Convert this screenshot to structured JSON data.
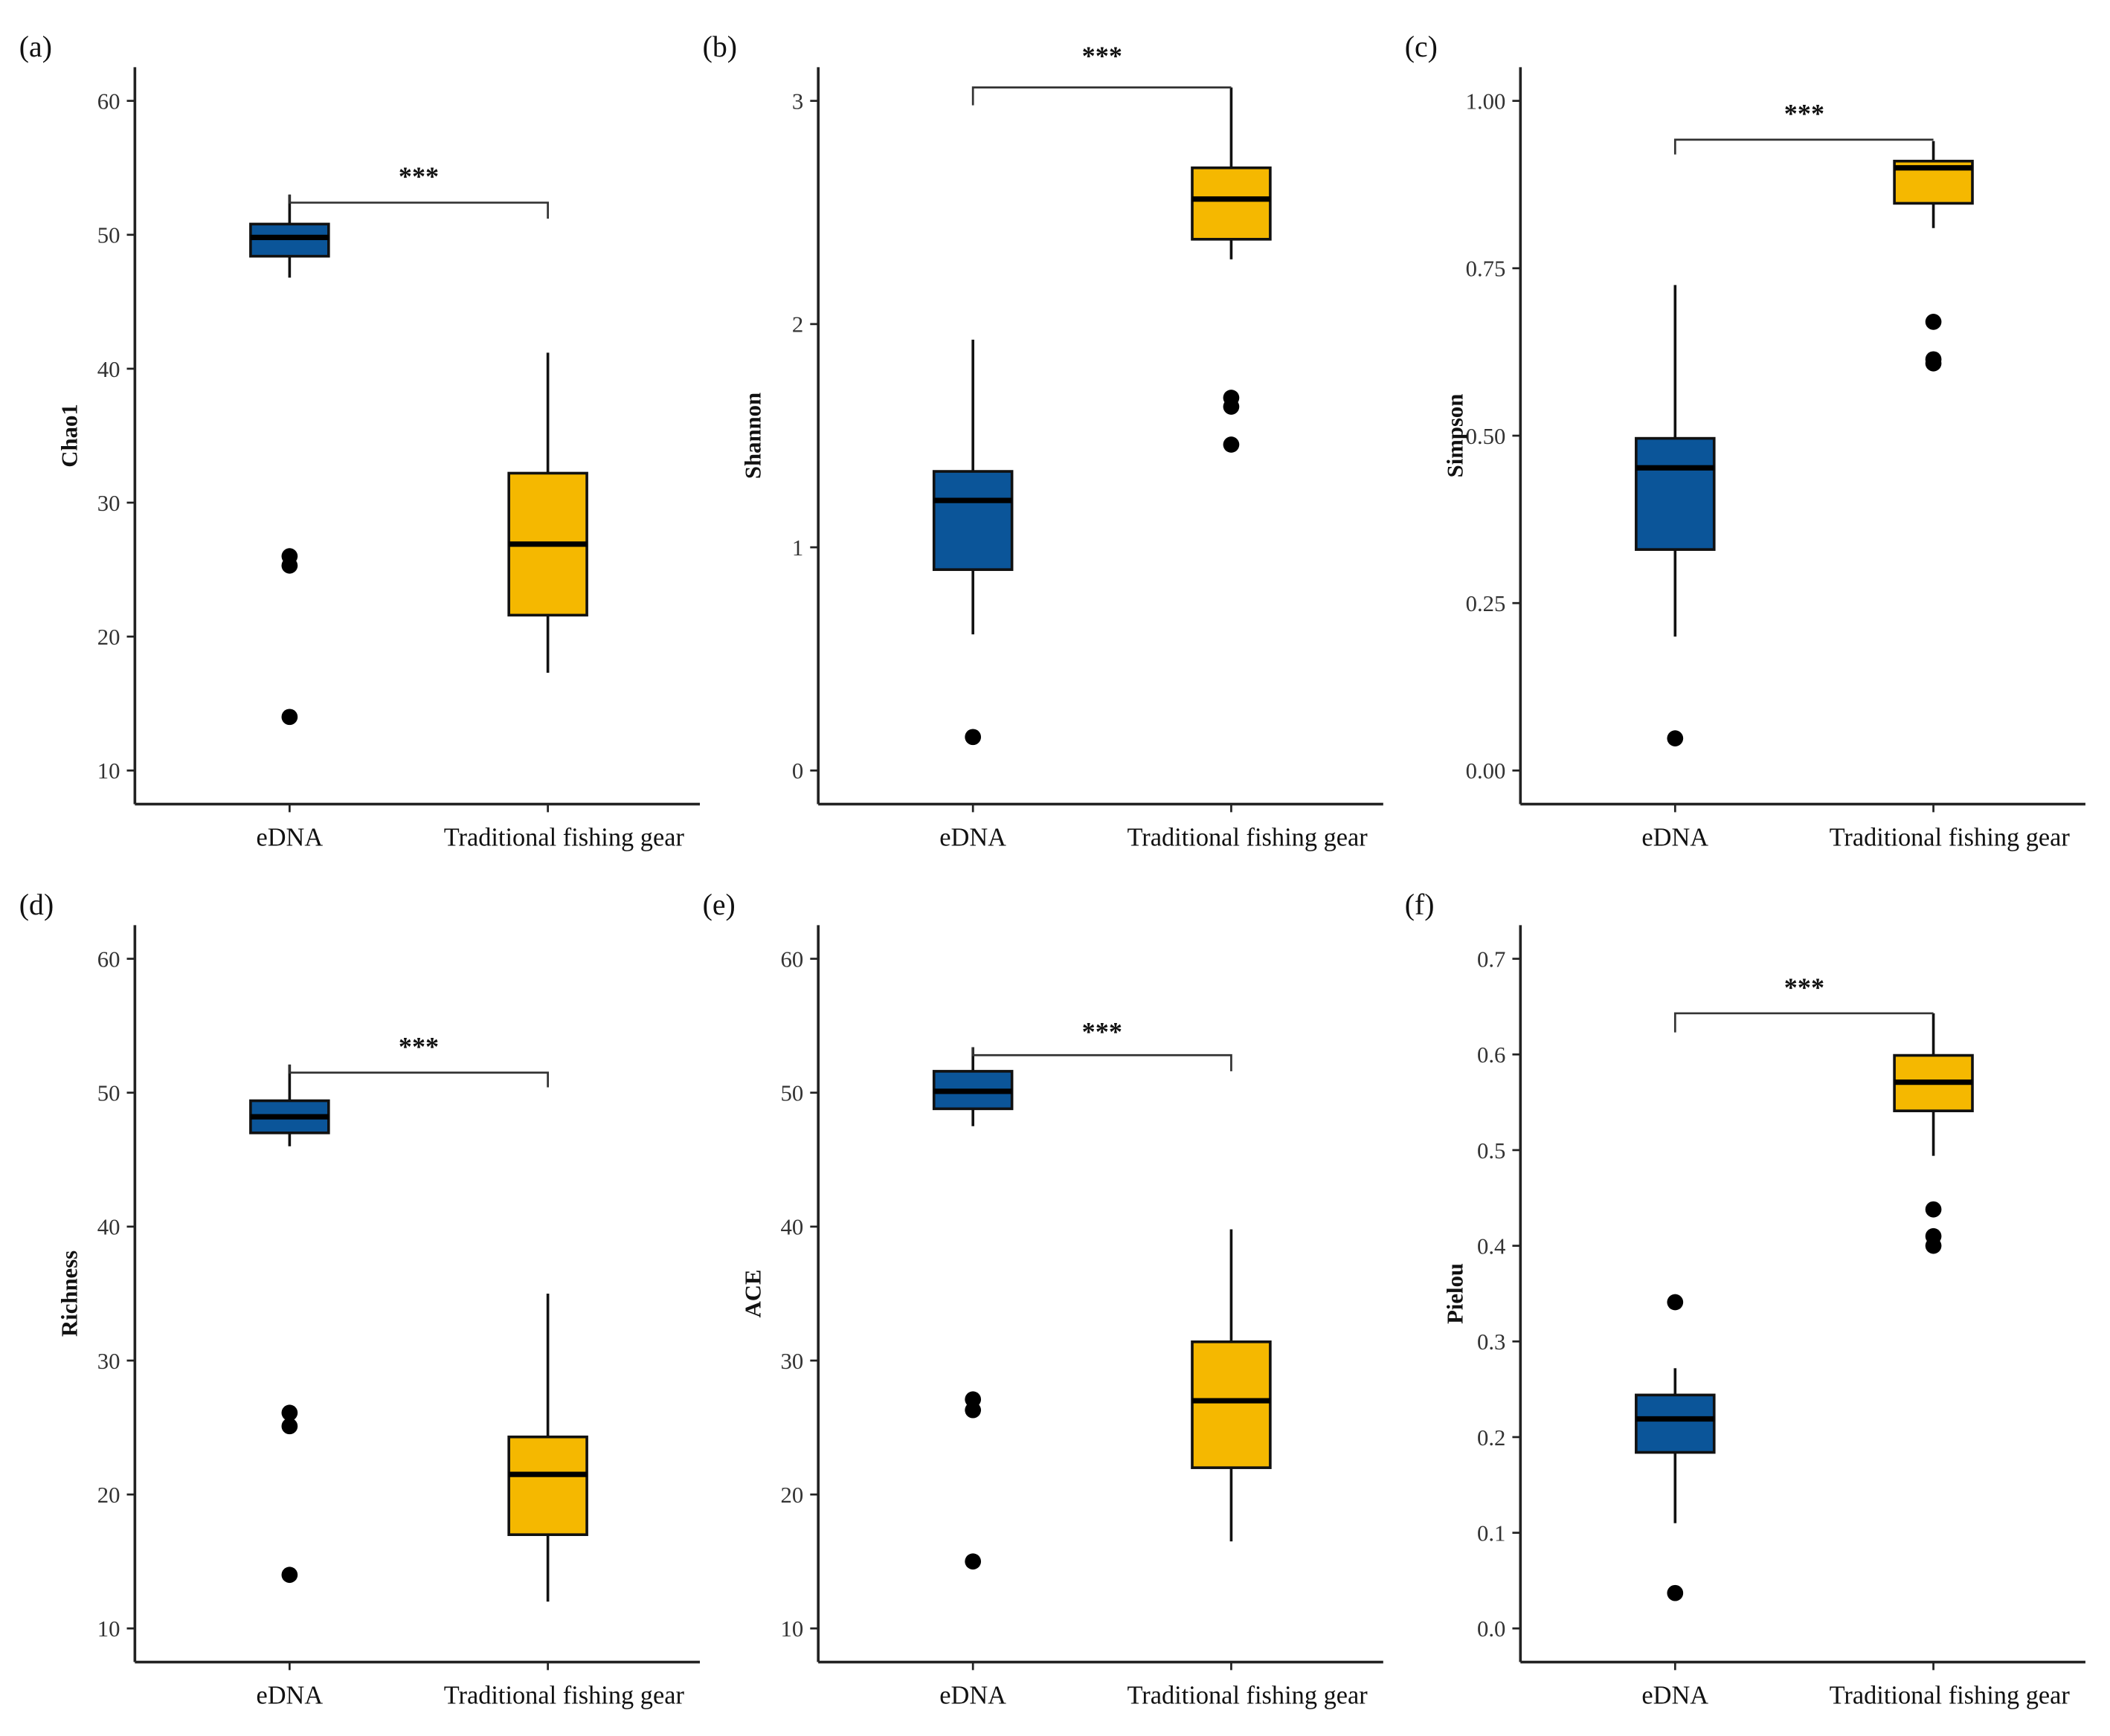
{
  "colors": {
    "eDNA": "#0b5599",
    "Traditional fishing gear": "#f5b800"
  },
  "chart_data": [
    {
      "type": "box",
      "panel": "(a)",
      "ylabel": "Chao1",
      "categories": [
        "eDNA",
        "Traditional fishing gear"
      ],
      "yticks": [
        10,
        20,
        30,
        40,
        50,
        60
      ],
      "ylim": [
        10,
        60
      ],
      "boxes": [
        {
          "min": 46.8,
          "q1": 48.4,
          "median": 49.8,
          "q3": 50.8,
          "max": 53.0,
          "outliers": [
            26.0,
            25.3,
            14.0
          ]
        },
        {
          "min": 17.3,
          "q1": 21.6,
          "median": 26.9,
          "q3": 32.2,
          "max": 41.2,
          "outliers": []
        }
      ],
      "significance": {
        "label": "***",
        "y": 52.4,
        "left_end": 53.0,
        "right_end": 51.2,
        "label_y": 54.5
      }
    },
    {
      "type": "box",
      "panel": "(b)",
      "ylabel": "Shannon",
      "categories": [
        "eDNA",
        "Traditional fishing gear"
      ],
      "yticks": [
        0,
        1,
        2,
        3
      ],
      "ylim": [
        0,
        3
      ],
      "boxes": [
        {
          "min": 0.61,
          "q1": 0.9,
          "median": 1.21,
          "q3": 1.34,
          "max": 1.93,
          "outliers": [
            0.15
          ]
        },
        {
          "min": 2.29,
          "q1": 2.38,
          "median": 2.56,
          "q3": 2.7,
          "max": 3.06,
          "outliers": [
            1.67,
            1.63,
            1.46
          ]
        }
      ],
      "significance": {
        "label": "***",
        "y": 3.06,
        "left_end": 2.98,
        "right_end": 3.06,
        "label_y": 3.21
      }
    },
    {
      "type": "box",
      "panel": "(c)",
      "ylabel": "Simpson",
      "categories": [
        "eDNA",
        "Traditional fishing gear"
      ],
      "yticks": [
        "0.00",
        "0.25",
        "0.50",
        "0.75",
        "1.00"
      ],
      "ylim": [
        0,
        1
      ],
      "boxes": [
        {
          "min": 0.2,
          "q1": 0.33,
          "median": 0.452,
          "q3": 0.496,
          "max": 0.725,
          "outliers": [
            0.048
          ]
        },
        {
          "min": 0.81,
          "q1": 0.847,
          "median": 0.9,
          "q3": 0.91,
          "max": 0.94,
          "outliers": [
            0.67,
            0.614,
            0.608
          ]
        }
      ],
      "significance": {
        "label": "***",
        "y": 0.942,
        "left_end": 0.92,
        "right_end": 0.942,
        "label_y": 0.984
      }
    },
    {
      "type": "box",
      "panel": "(d)",
      "ylabel": "Richness",
      "categories": [
        "eDNA",
        "Traditional fishing gear"
      ],
      "yticks": [
        10,
        20,
        30,
        40,
        50,
        60
      ],
      "ylim": [
        10,
        60
      ],
      "boxes": [
        {
          "min": 46.0,
          "q1": 47.0,
          "median": 48.2,
          "q3": 49.4,
          "max": 52.1,
          "outliers": [
            26.1,
            25.1,
            14.0
          ]
        },
        {
          "min": 12.0,
          "q1": 17.0,
          "median": 21.5,
          "q3": 24.3,
          "max": 35.0,
          "outliers": []
        }
      ],
      "significance": {
        "label": "***",
        "y": 51.5,
        "left_end": 52.1,
        "right_end": 50.4,
        "label_y": 53.6
      }
    },
    {
      "type": "box",
      "panel": "(e)",
      "ylabel": "ACE",
      "categories": [
        "eDNA",
        "Traditional fishing gear"
      ],
      "yticks": [
        10,
        20,
        30,
        40,
        50,
        60
      ],
      "ylim": [
        10,
        60
      ],
      "boxes": [
        {
          "min": 47.5,
          "q1": 48.8,
          "median": 50.1,
          "q3": 51.6,
          "max": 53.4,
          "outliers": [
            27.1,
            26.3,
            15.0
          ]
        },
        {
          "min": 16.5,
          "q1": 22.0,
          "median": 27.0,
          "q3": 31.4,
          "max": 39.8,
          "outliers": []
        }
      ],
      "significance": {
        "label": "***",
        "y": 52.8,
        "left_end": 53.4,
        "right_end": 51.6,
        "label_y": 54.7
      }
    },
    {
      "type": "box",
      "panel": "(f)",
      "ylabel": "Pielou",
      "categories": [
        "eDNA",
        "Traditional fishing gear"
      ],
      "yticks": [
        "0.0",
        "0.1",
        "0.2",
        "0.3",
        "0.4",
        "0.5",
        "0.6",
        "0.7"
      ],
      "ylim": [
        0,
        0.7
      ],
      "boxes": [
        {
          "min": 0.11,
          "q1": 0.184,
          "median": 0.219,
          "q3": 0.244,
          "max": 0.272,
          "outliers": [
            0.341,
            0.037
          ]
        },
        {
          "min": 0.494,
          "q1": 0.541,
          "median": 0.571,
          "q3": 0.599,
          "max": 0.643,
          "outliers": [
            0.438,
            0.41,
            0.4
          ]
        }
      ],
      "significance": {
        "label": "***",
        "y": 0.643,
        "left_end": 0.623,
        "right_end": 0.643,
        "label_y": 0.672
      }
    }
  ]
}
